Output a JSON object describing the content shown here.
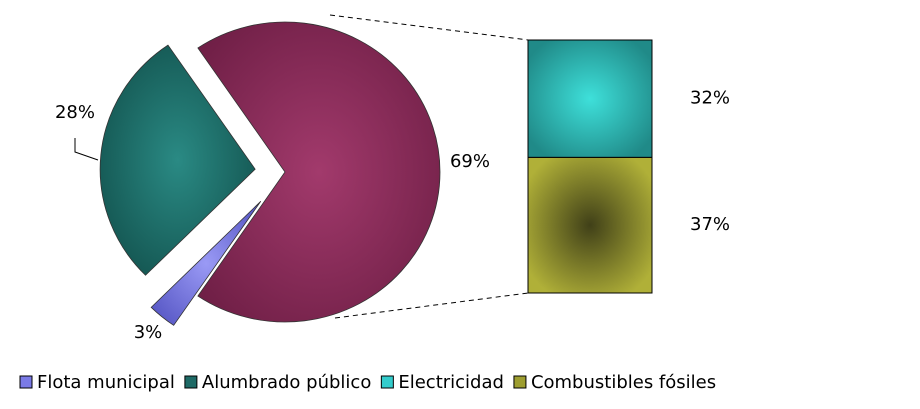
{
  "chart_data": {
    "type": "bar-of-pie",
    "categories": [
      "Flota municipal",
      "Alumbrado público",
      null
    ],
    "values": [
      3,
      28,
      69
    ],
    "value_labels": [
      "3%",
      "28%",
      "69%"
    ],
    "colors": [
      "#7a7ae6",
      "#1e6a66",
      "#8e2c5c"
    ],
    "bar": {
      "categories": [
        "Electricidad",
        "Combustibles fósiles"
      ],
      "values": [
        32,
        37
      ],
      "value_labels": [
        "32%",
        "37%"
      ],
      "colors": [
        "#33cccc",
        "#9e9e30"
      ]
    },
    "legend": "bottom"
  }
}
